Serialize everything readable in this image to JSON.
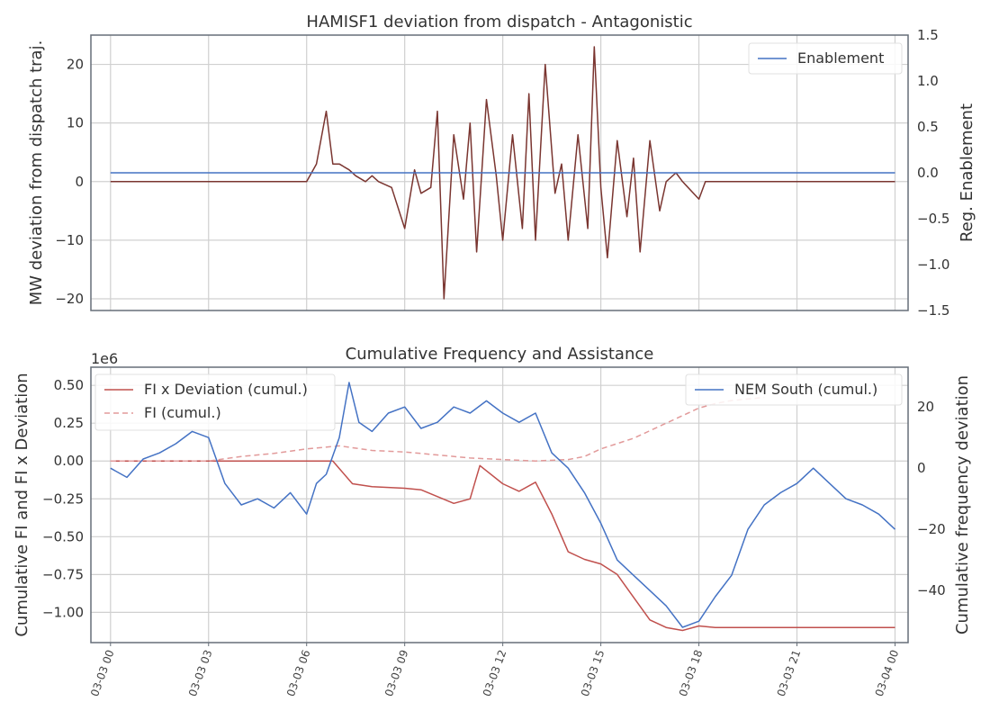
{
  "chart_data": [
    {
      "type": "line",
      "title": "HAMISF1 deviation from dispatch - Antagonistic",
      "ylabel": "MW deviation from dispatch traj.",
      "ylabel_right": "Reg. Enablement",
      "ylim": [
        -22,
        25
      ],
      "yticks": [
        -20,
        -10,
        0,
        10,
        20
      ],
      "ytick_labels": [
        "−20",
        "−10",
        "0",
        "10",
        "20"
      ],
      "ylim_right": [
        -1.5,
        1.5
      ],
      "yticks_right": [
        -1.5,
        -1.0,
        -0.5,
        0.0,
        0.5,
        1.0,
        1.5
      ],
      "ytick_labels_right": [
        "−1.5",
        "−1.0",
        "−0.5",
        "0.0",
        "0.5",
        "1.0",
        "1.5"
      ],
      "xlim": [
        -0.6,
        24.4
      ],
      "grid": true,
      "legend_position": "top-right",
      "series": [
        {
          "name": "",
          "axis": "left",
          "color": "#7a3530",
          "x": [
            0,
            6,
            6.3,
            6.6,
            6.8,
            7.0,
            7.3,
            7.5,
            7.8,
            8.0,
            8.2,
            8.6,
            9.0,
            9.3,
            9.5,
            9.8,
            10.0,
            10.2,
            10.5,
            10.8,
            11.0,
            11.2,
            11.5,
            11.8,
            12.0,
            12.3,
            12.6,
            12.8,
            13.0,
            13.3,
            13.6,
            13.8,
            14.0,
            14.3,
            14.6,
            14.8,
            15.0,
            15.2,
            15.5,
            15.8,
            16.0,
            16.2,
            16.5,
            16.8,
            17.0,
            17.3,
            17.5,
            18.0,
            18.2,
            24
          ],
          "values": [
            0,
            0,
            3,
            12,
            3,
            3,
            2,
            1,
            0,
            1,
            0,
            -1,
            -8,
            2,
            -2,
            -1,
            12,
            -20,
            8,
            -3,
            10,
            -12,
            14,
            1,
            -10,
            8,
            -8,
            15,
            -10,
            20,
            -2,
            3,
            -10,
            8,
            -8,
            23,
            -1,
            -13,
            7,
            -6,
            4,
            -12,
            7,
            -5,
            0,
            1.5,
            0,
            -3,
            0,
            0
          ]
        },
        {
          "name": "Enablement",
          "axis": "right",
          "color": "#4472c4",
          "x": [
            0,
            24
          ],
          "values": [
            0,
            0
          ]
        }
      ]
    },
    {
      "type": "line",
      "title": "Cumulative Frequency and Assistance",
      "ylabel": "Cumulative FI and FI x Deviation",
      "ylabel_right": "Cumulative frequency deviation",
      "offset_text": "1e6",
      "ylim": [
        -1.2,
        0.62
      ],
      "yticks": [
        -1.0,
        -0.75,
        -0.5,
        -0.25,
        0.0,
        0.25,
        0.5
      ],
      "ytick_labels": [
        "−1.00",
        "−0.75",
        "−0.50",
        "−0.25",
        "0.00",
        "0.25",
        "0.50"
      ],
      "ylim_right": [
        -57,
        33
      ],
      "yticks_right": [
        -40,
        -20,
        0,
        20
      ],
      "ytick_labels_right": [
        "−40",
        "−20",
        "0",
        "20"
      ],
      "xlim": [
        -0.6,
        24.4
      ],
      "xticks": [
        0,
        3,
        6,
        9,
        12,
        15,
        18,
        21,
        24
      ],
      "xtick_labels": [
        "03-03 00",
        "03-03 03",
        "03-03 06",
        "03-03 09",
        "03-03 12",
        "03-03 15",
        "03-03 18",
        "03-03 21",
        "03-04 00"
      ],
      "grid": true,
      "legend_position": "top-left and top-right",
      "series": [
        {
          "name": "FI x Deviation (cumul.)",
          "axis": "left",
          "color": "#c0504d",
          "dash": false,
          "x": [
            0,
            6.8,
            7.0,
            7.4,
            8.0,
            9.0,
            9.5,
            10.5,
            11.0,
            11.3,
            12.0,
            12.5,
            13.0,
            13.5,
            14.0,
            14.5,
            15.0,
            15.5,
            16.0,
            16.5,
            17.0,
            17.5,
            18.0,
            18.5,
            19.0,
            24
          ],
          "values": [
            0,
            0,
            -0.05,
            -0.15,
            -0.17,
            -0.18,
            -0.19,
            -0.28,
            -0.25,
            -0.03,
            -0.15,
            -0.2,
            -0.14,
            -0.35,
            -0.6,
            -0.65,
            -0.68,
            -0.75,
            -0.9,
            -1.05,
            -1.1,
            -1.12,
            -1.09,
            -1.1,
            -1.1,
            -1.1
          ]
        },
        {
          "name": "FI (cumul.)",
          "axis": "left",
          "color": "#e29a9a",
          "dash": true,
          "x": [
            0,
            3,
            4,
            5,
            6,
            7,
            8,
            9,
            10,
            11,
            12,
            13,
            14,
            14.5,
            15,
            16,
            17,
            17.5,
            18,
            18.5,
            19,
            20
          ],
          "values": [
            0,
            0,
            0.03,
            0.05,
            0.08,
            0.1,
            0.07,
            0.06,
            0.04,
            0.02,
            0.01,
            0,
            0.01,
            0.03,
            0.08,
            0.15,
            0.25,
            0.3,
            0.35,
            0.38,
            0.4,
            0.42
          ]
        },
        {
          "name": "NEM South (cumul.)",
          "axis": "right",
          "color": "#4472c4",
          "dash": false,
          "x": [
            0,
            0.5,
            1.0,
            1.5,
            2.0,
            2.5,
            3.0,
            3.5,
            4.0,
            4.5,
            5.0,
            5.5,
            6.0,
            6.3,
            6.6,
            7.0,
            7.3,
            7.6,
            8.0,
            8.5,
            9.0,
            9.5,
            10.0,
            10.5,
            11.0,
            11.5,
            12.0,
            12.5,
            13.0,
            13.5,
            14.0,
            14.5,
            15.0,
            15.5,
            16.0,
            16.5,
            17.0,
            17.5,
            18.0,
            18.5,
            19.0,
            19.5,
            20.0,
            20.5,
            21.0,
            21.5,
            22.0,
            22.5,
            23.0,
            23.5,
            24.0
          ],
          "values": [
            0,
            -3,
            3,
            5,
            8,
            12,
            10,
            -5,
            -12,
            -10,
            -13,
            -8,
            -15,
            -5,
            -2,
            10,
            28,
            15,
            12,
            18,
            20,
            13,
            15,
            20,
            18,
            22,
            18,
            15,
            18,
            5,
            0,
            -8,
            -18,
            -30,
            -35,
            -40,
            -45,
            -52,
            -50,
            -42,
            -35,
            -20,
            -12,
            -8,
            -5,
            0,
            -5,
            -10,
            -12,
            -15,
            -20
          ]
        }
      ]
    }
  ]
}
